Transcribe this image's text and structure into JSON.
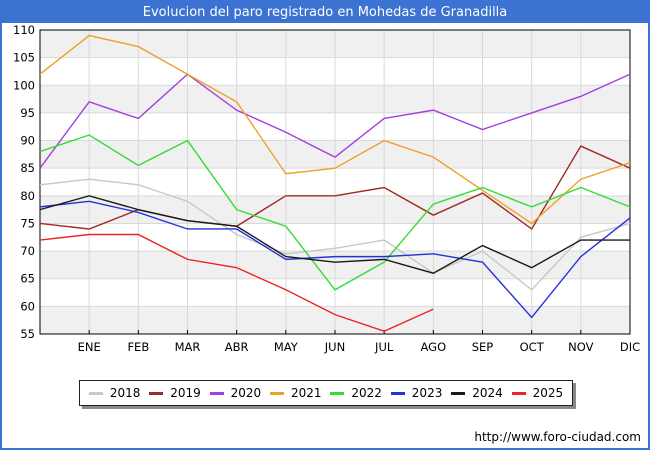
{
  "title": "Evolucion del paro registrado en Mohedas de Granadilla",
  "footer": {
    "url": "http://www.foro-ciudad.com"
  },
  "colors": {
    "frame_border": "#3c73d2",
    "titlebar_bg": "#3c73d2",
    "titlebar_text": "#ffffff",
    "plot_band": "#f0f0f0",
    "gridline": "#d9d9d9",
    "axis_box": "#000000",
    "legend_shadow": "#8a8a8a"
  },
  "chart_data": {
    "type": "line",
    "title": "Evolucion del paro registrado en Mohedas de Granadilla",
    "xlabel": "",
    "ylabel": "",
    "ylim": [
      55,
      110
    ],
    "yticks": [
      55,
      60,
      65,
      70,
      75,
      80,
      85,
      90,
      95,
      100,
      105,
      110
    ],
    "grid": true,
    "background_bands": true,
    "legend_position": "bottom",
    "x_categories": [
      "ENE",
      "FEB",
      "MAR",
      "ABR",
      "MAY",
      "JUN",
      "JUL",
      "AGO",
      "SEP",
      "OCT",
      "NOV",
      "DIC"
    ],
    "x_axis_note": "Each series has 13 points: the first point sits on the left plot edge (previous December carry-over), followed by the 12 month values ENE-DIC. The 2025 series ends at AGO.",
    "series": [
      {
        "name": "2018",
        "color": "#c8c8c8",
        "values": [
          82,
          83,
          82,
          79,
          73,
          69.5,
          70.5,
          72,
          66,
          70,
          63,
          72.5,
          75
        ]
      },
      {
        "name": "2019",
        "color": "#9e2b25",
        "values": [
          75,
          74,
          77.5,
          75.5,
          74.5,
          80,
          80,
          81.5,
          76.5,
          80.5,
          74,
          89,
          85
        ]
      },
      {
        "name": "2020",
        "color": "#a040e0",
        "values": [
          85,
          97,
          94,
          102,
          95.5,
          91.5,
          87,
          94,
          95.5,
          92,
          95,
          98,
          102
        ]
      },
      {
        "name": "2021",
        "color": "#f0a028",
        "values": [
          102,
          109,
          107,
          102,
          97,
          84,
          85,
          90,
          87,
          81,
          75,
          83,
          86
        ]
      },
      {
        "name": "2022",
        "color": "#33dd33",
        "values": [
          88,
          91,
          85.5,
          90,
          77.5,
          74.5,
          63,
          68,
          78.5,
          81.5,
          78,
          81.5,
          78
        ]
      },
      {
        "name": "2023",
        "color": "#2433d6",
        "values": [
          78,
          79,
          77,
          74,
          74,
          68.5,
          69,
          69,
          69.5,
          68,
          58,
          69,
          76
        ]
      },
      {
        "name": "2024",
        "color": "#1a1a1a",
        "values": [
          77.5,
          80,
          77.5,
          75.5,
          74.5,
          69,
          68,
          68.5,
          66,
          71,
          67,
          72,
          72
        ]
      },
      {
        "name": "2025",
        "color": "#ee2222",
        "values": [
          72,
          73,
          73,
          68.5,
          67,
          63,
          58.5,
          55.5,
          59.5
        ]
      }
    ]
  }
}
